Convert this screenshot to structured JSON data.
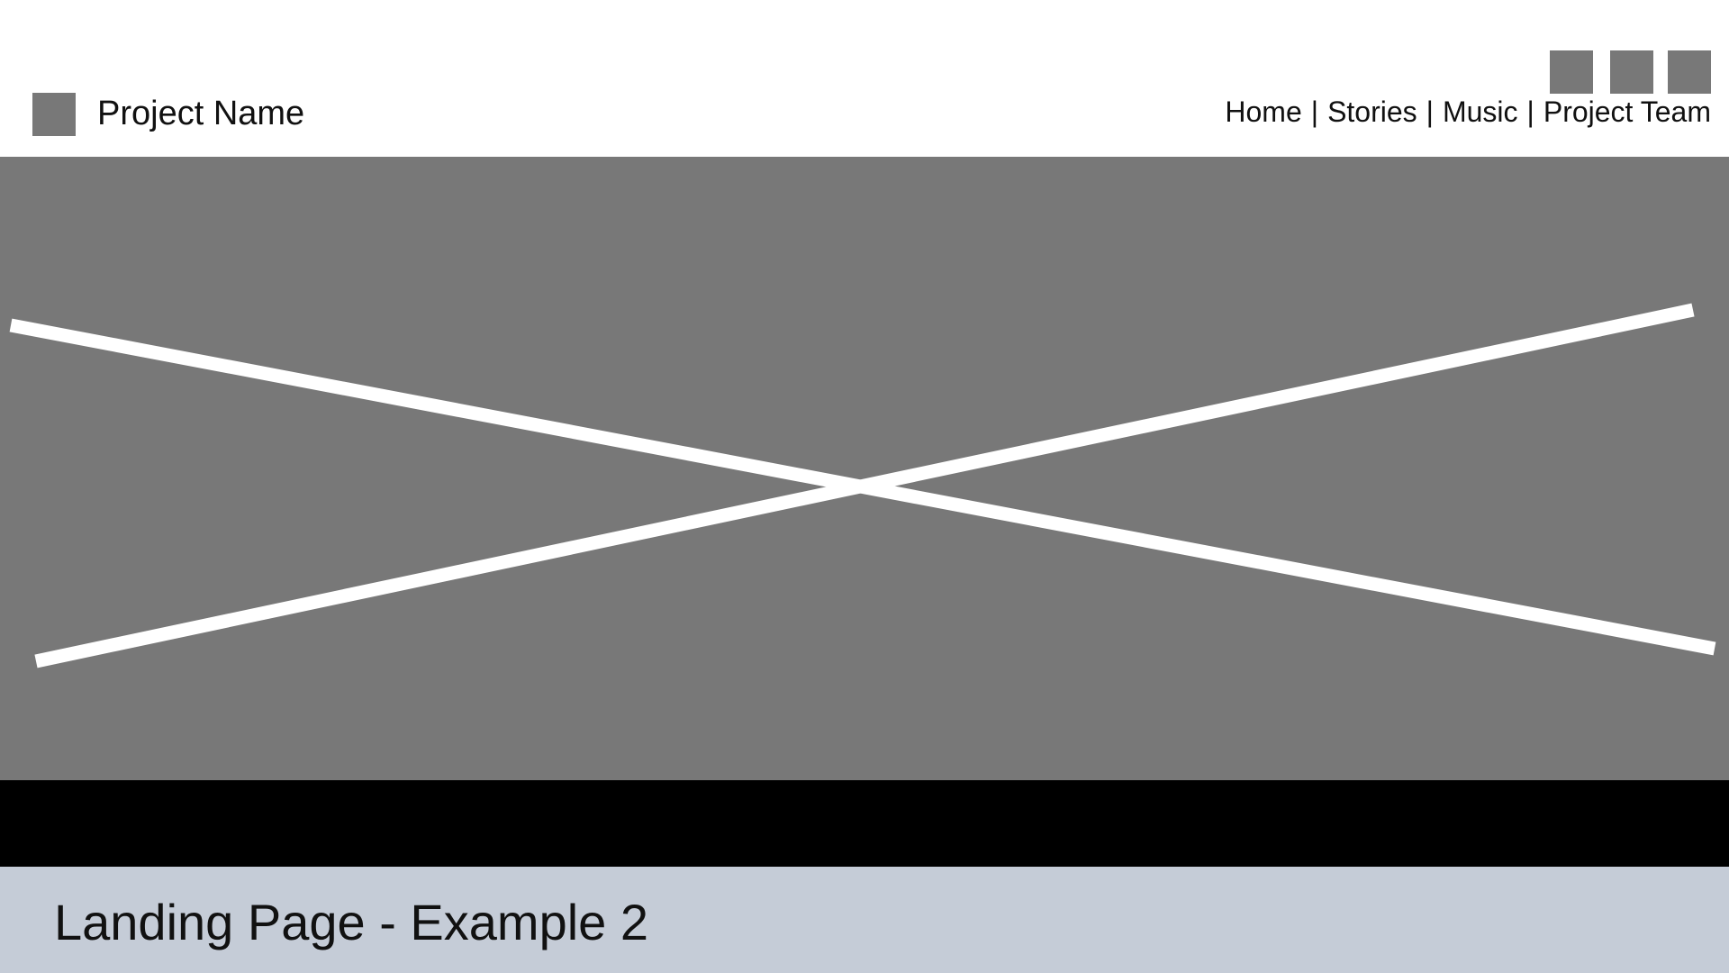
{
  "header": {
    "project_name": "Project Name",
    "logo_icon": "logo-placeholder-square",
    "social_icons": [
      "social-icon-placeholder",
      "social-icon-placeholder",
      "social-icon-placeholder"
    ],
    "nav": {
      "items": [
        {
          "label": "Home"
        },
        {
          "label": "Stories"
        },
        {
          "label": "Music"
        },
        {
          "label": "Project Team"
        }
      ],
      "separator": "|"
    }
  },
  "hero": {
    "placeholder_icon": "image-placeholder-cross"
  },
  "footer": {
    "caption": "Landing Page - Example 2"
  },
  "colors": {
    "placeholder_gray": "#787878",
    "band_black": "#000000",
    "caption_bg": "#c5ccd7",
    "text": "#111111",
    "cross_lines": "#ffffff"
  }
}
